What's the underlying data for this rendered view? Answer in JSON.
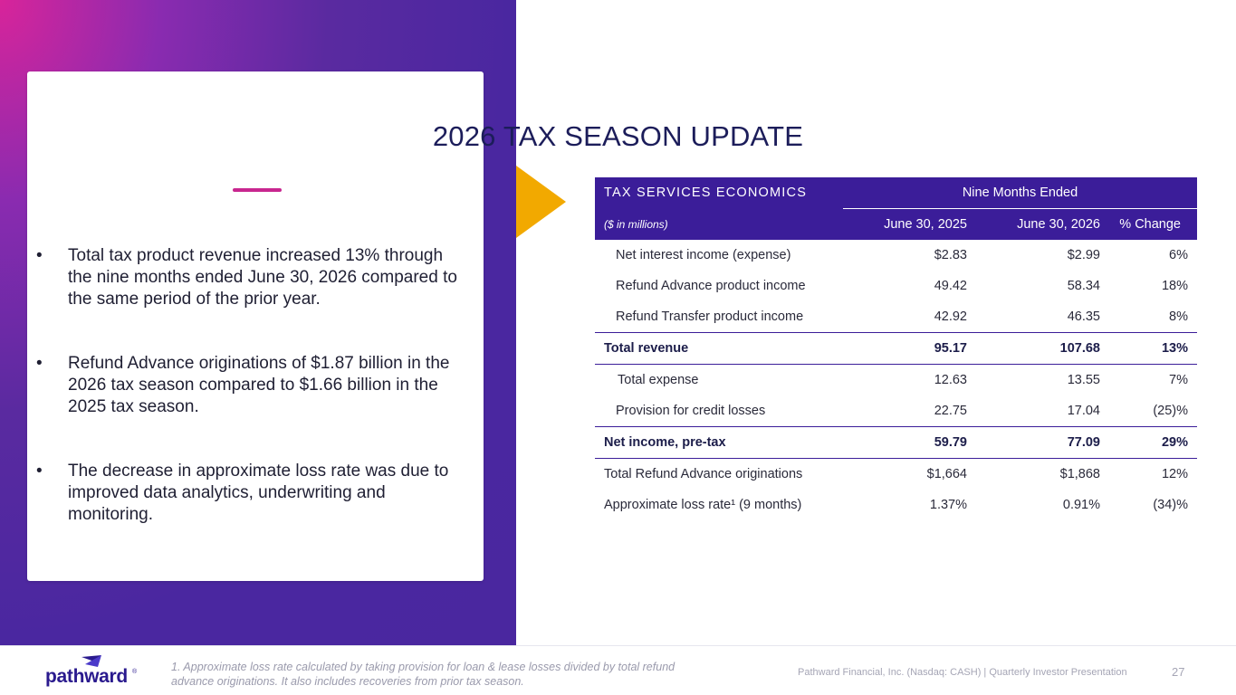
{
  "slide": {
    "title": "2026 TAX SEASON UPDATE",
    "bullet_marker": "•",
    "bullets": [
      "Total tax product revenue increased 13% through the nine months ended June 30, 2026 compared to the same period of the prior year.",
      "Refund Advance originations of $1.87 billion in the 2026 tax season compared to $1.66 billion in the 2025 tax season.",
      "The decrease in approximate loss rate was due to improved data analytics, underwriting and monitoring."
    ]
  },
  "table": {
    "title": "TAX SERVICES ECONOMICS",
    "group_header": "Nine Months Ended",
    "units": "($ in millions)",
    "columns": [
      "June 30, 2025",
      "June 30, 2026",
      "% Change"
    ],
    "rows": [
      {
        "label": "Net interest income (expense)",
        "v1": "$2.83",
        "v2": "$2.99",
        "chg": "6%"
      },
      {
        "label": "Refund Advance product income",
        "v1": "49.42",
        "v2": "58.34",
        "chg": "18%"
      },
      {
        "label": "Refund Transfer product income",
        "v1": "42.92",
        "v2": "46.35",
        "chg": "8%"
      },
      {
        "label": "Total revenue",
        "v1": "95.17",
        "v2": "107.68",
        "chg": "13%"
      },
      {
        "label": "Total expense",
        "v1": "12.63",
        "v2": "13.55",
        "chg": "7%"
      },
      {
        "label": "Provision for credit losses",
        "v1": "22.75",
        "v2": "17.04",
        "chg": "(25)%"
      },
      {
        "label": "Net income, pre-tax",
        "v1": "59.79",
        "v2": "77.09",
        "chg": "29%"
      },
      {
        "label": "Total Refund Advance originations",
        "v1": "$1,664",
        "v2": "$1,868",
        "chg": "12%"
      },
      {
        "label": "Approximate loss rate¹ (9 months)",
        "v1": "1.37%",
        "v2": "0.91%",
        "chg": "(34)%"
      }
    ]
  },
  "footer": {
    "logo_text": "pathward",
    "logo_reg": "®",
    "footnote": "1. Approximate loss rate calculated by taking provision for loan & lease losses divided by total refund advance originations. It also includes recoveries from prior tax season.",
    "company_line": "Pathward Financial, Inc. (Nasdaq: CASH) | Quarterly Investor Presentation",
    "page_number": "27"
  },
  "colors": {
    "accent_purple": "#3b1d99",
    "title_navy": "#1c1d5a",
    "accent_magenta": "#c8268f",
    "arrow_gold": "#f2a900"
  }
}
